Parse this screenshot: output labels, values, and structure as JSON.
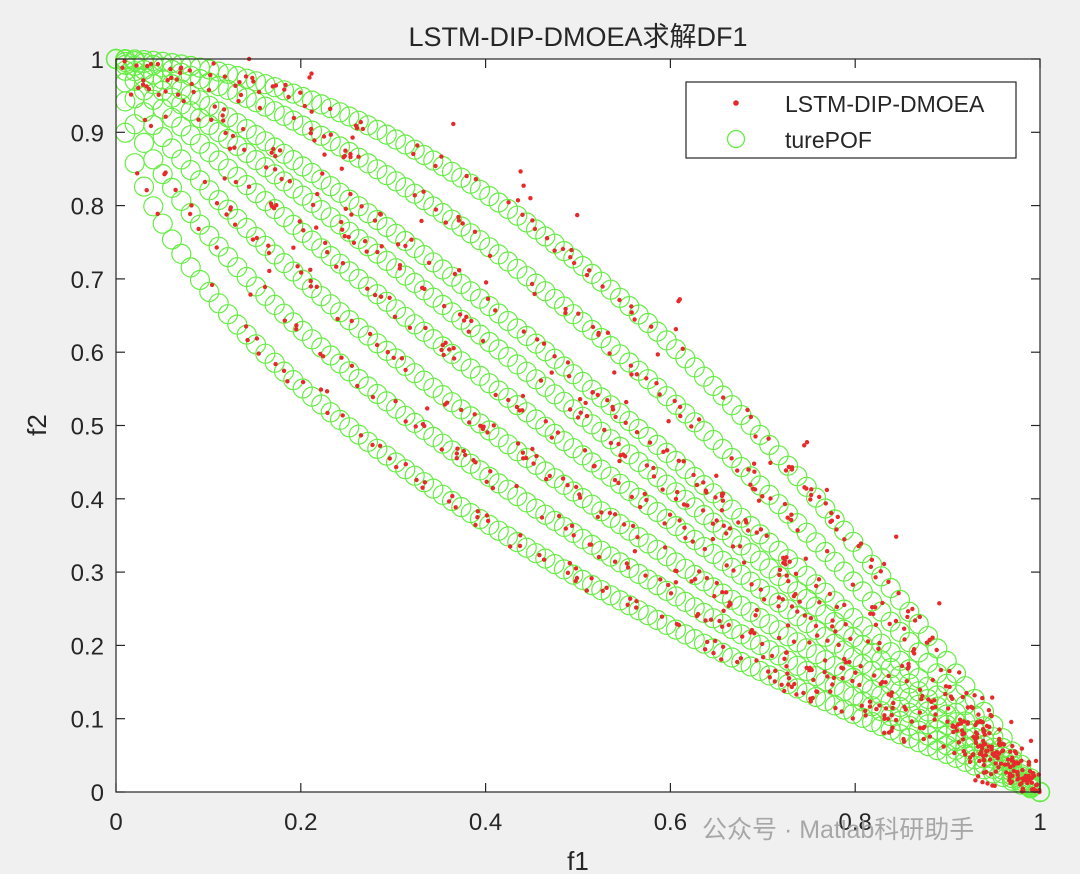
{
  "chart_data": {
    "type": "scatter",
    "title": "LSTM-DIP-DMOEA求解DF1",
    "xlabel": "f1",
    "ylabel": "f2",
    "xlim": [
      0,
      1
    ],
    "ylim": [
      0,
      1
    ],
    "xticks": [
      "0",
      "0.2",
      "0.4",
      "0.6",
      "0.8",
      "1"
    ],
    "yticks": [
      "0",
      "0.1",
      "0.2",
      "0.3",
      "0.4",
      "0.5",
      "0.6",
      "0.7",
      "0.8",
      "0.9",
      "1"
    ],
    "grid": false,
    "box": true,
    "legend_position": "top-right",
    "series": [
      {
        "name": "LSTM-DIP-DMOEA",
        "marker": "dot",
        "color": "#e8292b",
        "curve_exponents": [
          0.5,
          0.62,
          0.75,
          0.9,
          1.05,
          1.2,
          1.5,
          1.85
        ],
        "points_per_curve": 90,
        "jitter": 0.012,
        "outlier_count": 160
      },
      {
        "name": "turePOF",
        "marker": "open-circle",
        "color": "#66ee44",
        "curve_exponents": [
          0.5,
          0.62,
          0.75,
          0.9,
          1.05,
          1.2,
          1.5,
          1.85
        ],
        "points_per_curve": 100
      }
    ]
  },
  "watermark": {
    "text": "公众号 · Matlab科研助手"
  }
}
